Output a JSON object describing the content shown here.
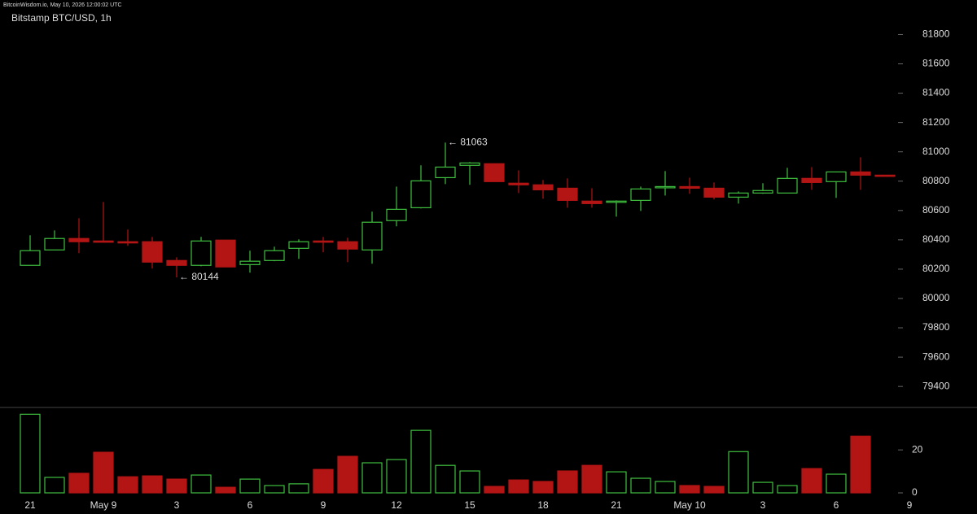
{
  "chart_data": {
    "type": "candlestick",
    "header": "BitcoinWisdom.io, May 10, 2026 12:00:02 UTC",
    "title": "Bitstamp BTC/USD, 1h",
    "categories": [
      "21",
      null,
      null,
      "May 9",
      null,
      null,
      "3",
      null,
      null,
      "6",
      null,
      null,
      "9",
      null,
      null,
      "12",
      null,
      null,
      "15",
      null,
      null,
      "18",
      null,
      null,
      "21",
      null,
      null,
      "May 10",
      null,
      null,
      "3",
      null,
      null,
      "6",
      null,
      null,
      "9"
    ],
    "open": [
      80226,
      80331,
      80409,
      80392,
      80387,
      80387,
      80259,
      80226,
      80398,
      80231,
      80259,
      80342,
      80392,
      80387,
      80331,
      80531,
      80619,
      80824,
      80908,
      80919,
      80786,
      80775,
      80752,
      80664,
      80658,
      80669,
      80758,
      80763,
      80752,
      80691,
      80719,
      80719,
      80819,
      80797,
      80863,
      80841,
      null
    ],
    "high": [
      80431,
      80464,
      80547,
      80658,
      80470,
      80420,
      80281,
      80420,
      80398,
      80326,
      80353,
      80403,
      80420,
      80414,
      80592,
      80763,
      80908,
      81063,
      80930,
      80919,
      80874,
      80808,
      80819,
      80752,
      80669,
      80763,
      80869,
      80824,
      80791,
      80730,
      80786,
      80891,
      80896,
      80863,
      80963,
      80841,
      null
    ],
    "low": [
      80226,
      80331,
      80309,
      80381,
      80359,
      80204,
      80144,
      80220,
      80215,
      80176,
      80254,
      80270,
      80315,
      80248,
      80237,
      80492,
      80614,
      80780,
      80775,
      80797,
      80719,
      80680,
      80619,
      80619,
      80558,
      80597,
      80702,
      80714,
      80675,
      80647,
      80714,
      80719,
      80741,
      80686,
      80741,
      80835,
      null
    ],
    "close": [
      80326,
      80409,
      80387,
      80387,
      80381,
      80248,
      80226,
      80392,
      80215,
      80254,
      80326,
      80387,
      80389,
      80337,
      80520,
      80608,
      80802,
      80896,
      80924,
      80797,
      80775,
      80741,
      80669,
      80647,
      80664,
      80747,
      80763,
      80752,
      80691,
      80719,
      80736,
      80819,
      80791,
      80863,
      80841,
      80835,
      null
    ],
    "volume": [
      36.6,
      7.2,
      9.1,
      18.9,
      7.5,
      7.9,
      6.4,
      8.3,
      2.6,
      6.4,
      3.4,
      4.2,
      10.9,
      17.0,
      14.0,
      15.5,
      29.1,
      12.8,
      10.2,
      3.0,
      6.0,
      5.3,
      10.2,
      12.8,
      9.8,
      6.8,
      5.3,
      3.4,
      3.0,
      19.2,
      4.9,
      3.4,
      11.3,
      8.7,
      26.4,
      0,
      null
    ],
    "up_color": "#3fbf3f",
    "down_color": "#b31414",
    "ylim": [
      79290,
      81980
    ],
    "yticks": [
      79400,
      79600,
      79800,
      80000,
      80200,
      80400,
      80600,
      80800,
      81000,
      81200,
      81400,
      81600,
      81800
    ],
    "volume_ylim": [
      0,
      39
    ],
    "volume_yticks": [
      0,
      20
    ],
    "annotations": [
      {
        "text": "← 81063",
        "at": 17,
        "value": 81063
      },
      {
        "text": "← 80144",
        "at": 6,
        "value": 80144
      }
    ]
  }
}
